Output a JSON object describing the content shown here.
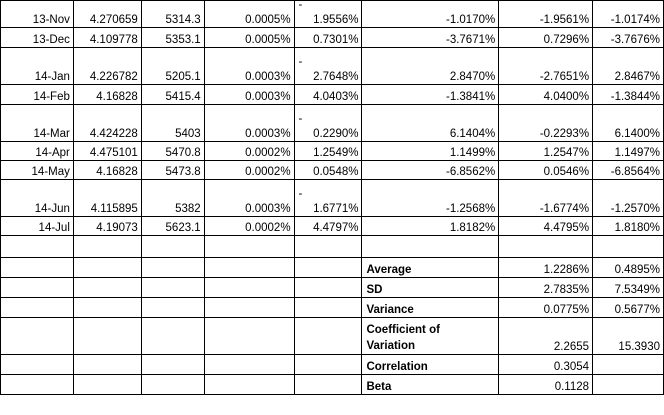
{
  "rows": [
    {
      "date": "13-Nov",
      "price": "4.270659",
      "index": "5314.3",
      "rf": "0.0005%",
      "mret": "1.9556%",
      "mret_dash": true,
      "c5": "-1.0170%",
      "c6": "-1.9561%",
      "c7": "-1.0174%"
    },
    {
      "date": "13-Dec",
      "price": "4.109778",
      "index": "5353.1",
      "rf": "0.0005%",
      "mret": "0.7301%",
      "mret_dash": false,
      "c5": "-3.7671%",
      "c6": "0.7296%",
      "c7": "-3.7676%"
    },
    {
      "date": "14-Jan",
      "price": "4.226782",
      "index": "5205.1",
      "rf": "0.0003%",
      "mret": "2.7648%",
      "mret_dash": true,
      "c5": "2.8470%",
      "c6": "-2.7651%",
      "c7": "2.8467%"
    },
    {
      "date": "14-Feb",
      "price": "4.16828",
      "index": "5415.4",
      "rf": "0.0003%",
      "mret": "4.0403%",
      "mret_dash": false,
      "c5": "-1.3841%",
      "c6": "4.0400%",
      "c7": "-1.3844%"
    },
    {
      "date": "14-Mar",
      "price": "4.424228",
      "index": "5403",
      "rf": "0.0003%",
      "mret": "0.2290%",
      "mret_dash": true,
      "c5": "6.1404%",
      "c6": "-0.2293%",
      "c7": "6.1400%"
    },
    {
      "date": "14-Apr",
      "price": "4.475101",
      "index": "5470.8",
      "rf": "0.0002%",
      "mret": "1.2549%",
      "mret_dash": false,
      "c5": "1.1499%",
      "c6": "1.2547%",
      "c7": "1.1497%"
    },
    {
      "date": "14-May",
      "price": "4.16828",
      "index": "5473.8",
      "rf": "0.0002%",
      "mret": "0.0548%",
      "mret_dash": false,
      "c5": "-6.8562%",
      "c6": "0.0546%",
      "c7": "-6.8564%"
    },
    {
      "date": "14-Jun",
      "price": "4.115895",
      "index": "5382",
      "rf": "0.0003%",
      "mret": "1.6771%",
      "mret_dash": true,
      "c5": "-1.2568%",
      "c6": "-1.6774%",
      "c7": "-1.2570%"
    },
    {
      "date": "14-Jul",
      "price": "4.19073",
      "index": "5623.1",
      "rf": "0.0002%",
      "mret": "4.4797%",
      "mret_dash": false,
      "c5": "1.8182%",
      "c6": "4.4795%",
      "c7": "1.8180%"
    }
  ],
  "stats": [
    {
      "label": "Average",
      "v1": "1.2286%",
      "v2": "0.4895%"
    },
    {
      "label": "SD",
      "v1": "2.7835%",
      "v2": "7.5349%"
    },
    {
      "label": "Variance",
      "v1": "0.0775%",
      "v2": "0.5677%"
    },
    {
      "label": "Coefficient of",
      "label2": "Variation",
      "v1": "2.2655",
      "v2": "15.3930"
    },
    {
      "label": "Correlation",
      "v1": "0.3054",
      "v2": ""
    },
    {
      "label": "Beta",
      "v1": "0.1128",
      "v2": ""
    }
  ],
  "dash_char": "-"
}
